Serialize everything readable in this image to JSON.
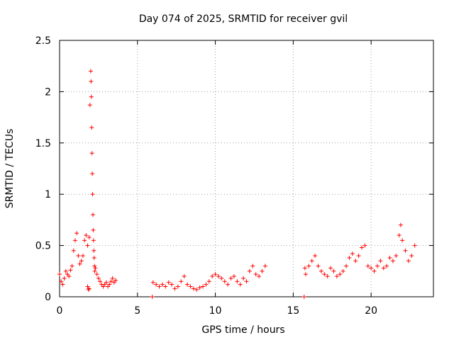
{
  "chart_data": {
    "type": "scatter",
    "title": "Day 074 of 2025, SRMTID for receiver gvil",
    "xlabel": "GPS time / hours",
    "ylabel": "SRMTID / TECUs",
    "xlim": [
      0,
      24
    ],
    "ylim": [
      0,
      2.5
    ],
    "x_ticks": [
      0,
      5,
      10,
      15,
      20
    ],
    "x_tick_labels": [
      "0",
      "5",
      "10",
      "15",
      "20"
    ],
    "y_ticks": [
      0,
      0.5,
      1,
      1.5,
      2,
      2.5
    ],
    "y_tick_labels": [
      "0",
      "0.5",
      "1",
      "1.5",
      "2",
      "2.5"
    ],
    "grid": true,
    "marker": "+",
    "color": "#ff0000",
    "series": [
      {
        "name": "SRMTID",
        "x": [
          0.0,
          0.1,
          0.2,
          0.3,
          0.4,
          0.5,
          0.6,
          0.7,
          0.8,
          0.9,
          1.0,
          1.1,
          1.2,
          1.3,
          1.4,
          1.5,
          1.6,
          1.7,
          1.8,
          1.9,
          1.95,
          2.0,
          2.02,
          2.04,
          2.06,
          2.08,
          2.1,
          2.12,
          2.14,
          2.16,
          2.18,
          2.2,
          2.22,
          2.24,
          2.26,
          2.3,
          2.4,
          2.5,
          2.6,
          2.7,
          2.8,
          2.9,
          3.0,
          3.1,
          3.2,
          3.3,
          3.4,
          3.5,
          3.6,
          1.8,
          1.85,
          1.9,
          5.95,
          6.0,
          6.2,
          6.4,
          6.6,
          6.8,
          7.0,
          7.2,
          7.4,
          7.6,
          7.8,
          8.0,
          8.2,
          8.4,
          8.6,
          8.8,
          9.0,
          9.2,
          9.4,
          9.6,
          9.8,
          10.0,
          10.2,
          10.4,
          10.6,
          10.8,
          11.0,
          11.2,
          11.4,
          11.6,
          11.8,
          12.0,
          12.2,
          12.4,
          12.6,
          12.8,
          13.0,
          13.2,
          15.7,
          15.75,
          15.8,
          16.0,
          16.2,
          16.4,
          16.6,
          16.8,
          17.0,
          17.2,
          17.4,
          17.6,
          17.8,
          18.0,
          18.2,
          18.4,
          18.6,
          18.8,
          19.0,
          19.2,
          19.4,
          19.6,
          19.8,
          20.0,
          20.2,
          20.4,
          20.6,
          20.8,
          21.0,
          21.2,
          21.4,
          21.6,
          21.8,
          21.9,
          22.0,
          22.2,
          22.4,
          22.6,
          22.8
        ],
        "y": [
          0.22,
          0.15,
          0.12,
          0.18,
          0.25,
          0.22,
          0.2,
          0.26,
          0.3,
          0.45,
          0.55,
          0.62,
          0.4,
          0.32,
          0.35,
          0.4,
          0.55,
          0.6,
          0.5,
          0.58,
          1.87,
          2.2,
          2.1,
          1.95,
          1.65,
          1.4,
          1.2,
          1.0,
          0.8,
          0.65,
          0.55,
          0.45,
          0.38,
          0.3,
          0.25,
          0.28,
          0.22,
          0.18,
          0.15,
          0.12,
          0.1,
          0.12,
          0.14,
          0.1,
          0.12,
          0.15,
          0.18,
          0.14,
          0.16,
          0.1,
          0.07,
          0.08,
          0.0,
          0.14,
          0.12,
          0.1,
          0.12,
          0.1,
          0.14,
          0.12,
          0.08,
          0.1,
          0.15,
          0.2,
          0.12,
          0.1,
          0.08,
          0.07,
          0.09,
          0.1,
          0.12,
          0.15,
          0.2,
          0.22,
          0.2,
          0.18,
          0.15,
          0.12,
          0.18,
          0.2,
          0.15,
          0.12,
          0.18,
          0.15,
          0.25,
          0.3,
          0.22,
          0.2,
          0.25,
          0.3,
          0.0,
          0.28,
          0.22,
          0.3,
          0.35,
          0.4,
          0.3,
          0.25,
          0.22,
          0.2,
          0.28,
          0.25,
          0.2,
          0.22,
          0.25,
          0.3,
          0.38,
          0.42,
          0.35,
          0.4,
          0.48,
          0.5,
          0.3,
          0.28,
          0.25,
          0.3,
          0.35,
          0.28,
          0.3,
          0.38,
          0.35,
          0.4,
          0.6,
          0.7,
          0.55,
          0.45,
          0.35,
          0.4,
          0.5
        ]
      }
    ]
  }
}
